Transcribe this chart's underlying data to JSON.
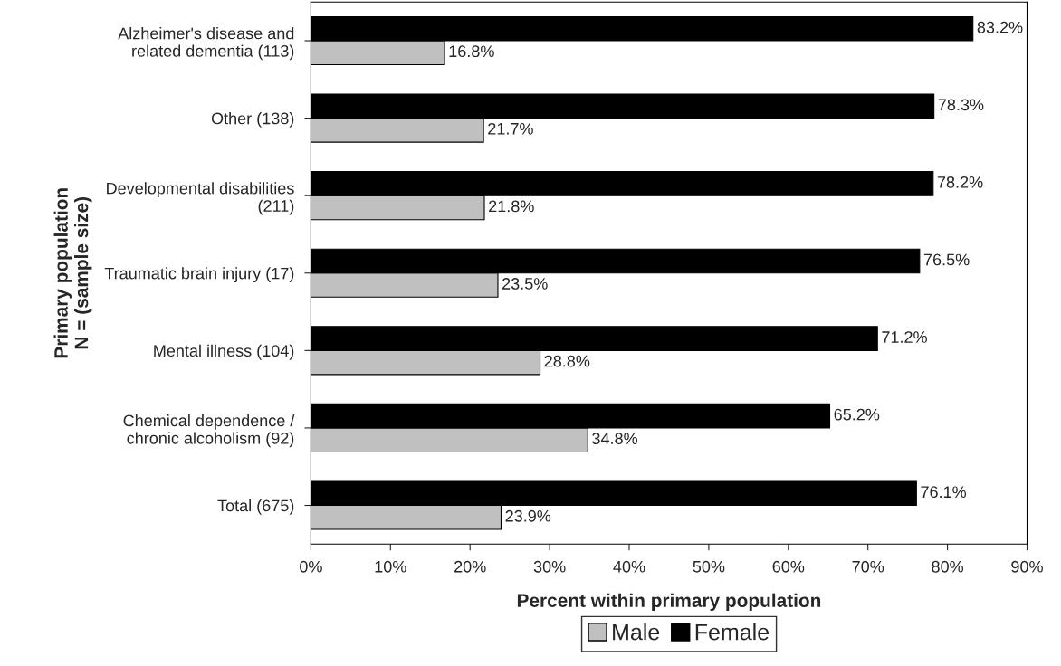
{
  "chart_data": {
    "type": "bar",
    "orientation": "horizontal",
    "categories": [
      "Alzheimer's disease and\nrelated dementia (113)",
      "Other (138)",
      "Developmental disabilities\n(211)",
      "Traumatic brain injury (17)",
      "Mental illness (104)",
      "Chemical dependence /\nchronic alcoholism (92)",
      "Total (675)"
    ],
    "series": [
      {
        "name": "Male",
        "color": "#c0c0c0",
        "values": [
          16.8,
          21.7,
          21.8,
          23.5,
          28.8,
          34.8,
          23.9
        ],
        "value_labels": [
          "16.8%",
          "21.7%",
          "21.8%",
          "23.5%",
          "28.8%",
          "34.8%",
          "23.9%"
        ]
      },
      {
        "name": "Female",
        "color": "#000000",
        "values": [
          83.2,
          78.3,
          78.2,
          76.5,
          71.2,
          65.2,
          76.1
        ],
        "value_labels": [
          "83.2%",
          "78.3%",
          "78.2%",
          "76.5%",
          "71.2%",
          "65.2%",
          "76.1%"
        ]
      }
    ],
    "xlabel": "Percent within primary population",
    "ylabel": "Primary population\nN = (sample size)",
    "xlim": [
      0,
      90
    ],
    "xticks": [
      {
        "value": 0,
        "label": "0%"
      },
      {
        "value": 10,
        "label": "10%"
      },
      {
        "value": 20,
        "label": "20%"
      },
      {
        "value": 30,
        "label": "30%"
      },
      {
        "value": 40,
        "label": "40%"
      },
      {
        "value": 50,
        "label": "50%"
      },
      {
        "value": 60,
        "label": "60%"
      },
      {
        "value": 70,
        "label": "70%"
      },
      {
        "value": 80,
        "label": "80%"
      },
      {
        "value": 90,
        "label": "90%"
      }
    ],
    "grid": false,
    "legend": "bottom"
  }
}
